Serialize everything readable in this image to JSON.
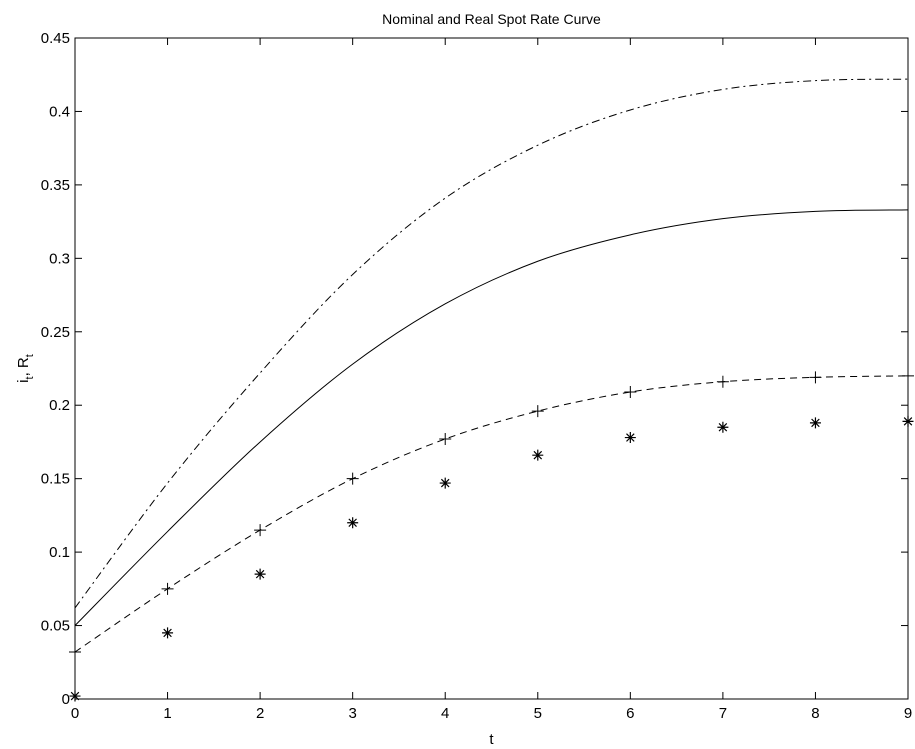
{
  "chart_data": {
    "type": "line",
    "title": "Nominal and Real Spot Rate Curve",
    "xlabel": "t",
    "ylabel": {
      "main1": "i",
      "sub1": "t",
      "sep": ", ",
      "main2": "R",
      "sub2": "t"
    },
    "xlim": [
      0,
      9
    ],
    "ylim": [
      0,
      0.45
    ],
    "xticks": [
      "0",
      "1",
      "2",
      "3",
      "4",
      "5",
      "6",
      "7",
      "8",
      "9"
    ],
    "yticks": [
      "0",
      "0.05",
      "0.1",
      "0.15",
      "0.2",
      "0.25",
      "0.3",
      "0.35",
      "0.4",
      "0.45"
    ],
    "grid": false,
    "x": [
      0,
      1,
      2,
      3,
      4,
      5,
      6,
      7,
      8,
      9
    ],
    "series": [
      {
        "style": "dash-dot",
        "color": "#000000",
        "values": [
          0.062,
          0.147,
          0.222,
          0.289,
          0.341,
          0.377,
          0.401,
          0.415,
          0.421,
          0.422
        ]
      },
      {
        "style": "solid",
        "color": "#000000",
        "values": [
          0.05,
          0.114,
          0.175,
          0.228,
          0.269,
          0.298,
          0.316,
          0.327,
          0.332,
          0.333
        ]
      },
      {
        "style": "dashed",
        "color": "#000000",
        "values": [
          0.032,
          0.075,
          0.115,
          0.15,
          0.177,
          0.196,
          0.209,
          0.216,
          0.219,
          0.22
        ]
      },
      {
        "style": "plus-markers",
        "color": "#000000",
        "values": [
          0.032,
          0.075,
          0.115,
          0.15,
          0.177,
          0.196,
          0.209,
          0.216,
          0.219,
          0.22
        ]
      },
      {
        "style": "star-markers",
        "color": "#000000",
        "values": [
          0.002,
          0.045,
          0.085,
          0.12,
          0.147,
          0.166,
          0.178,
          0.185,
          0.188,
          0.189
        ]
      }
    ]
  }
}
